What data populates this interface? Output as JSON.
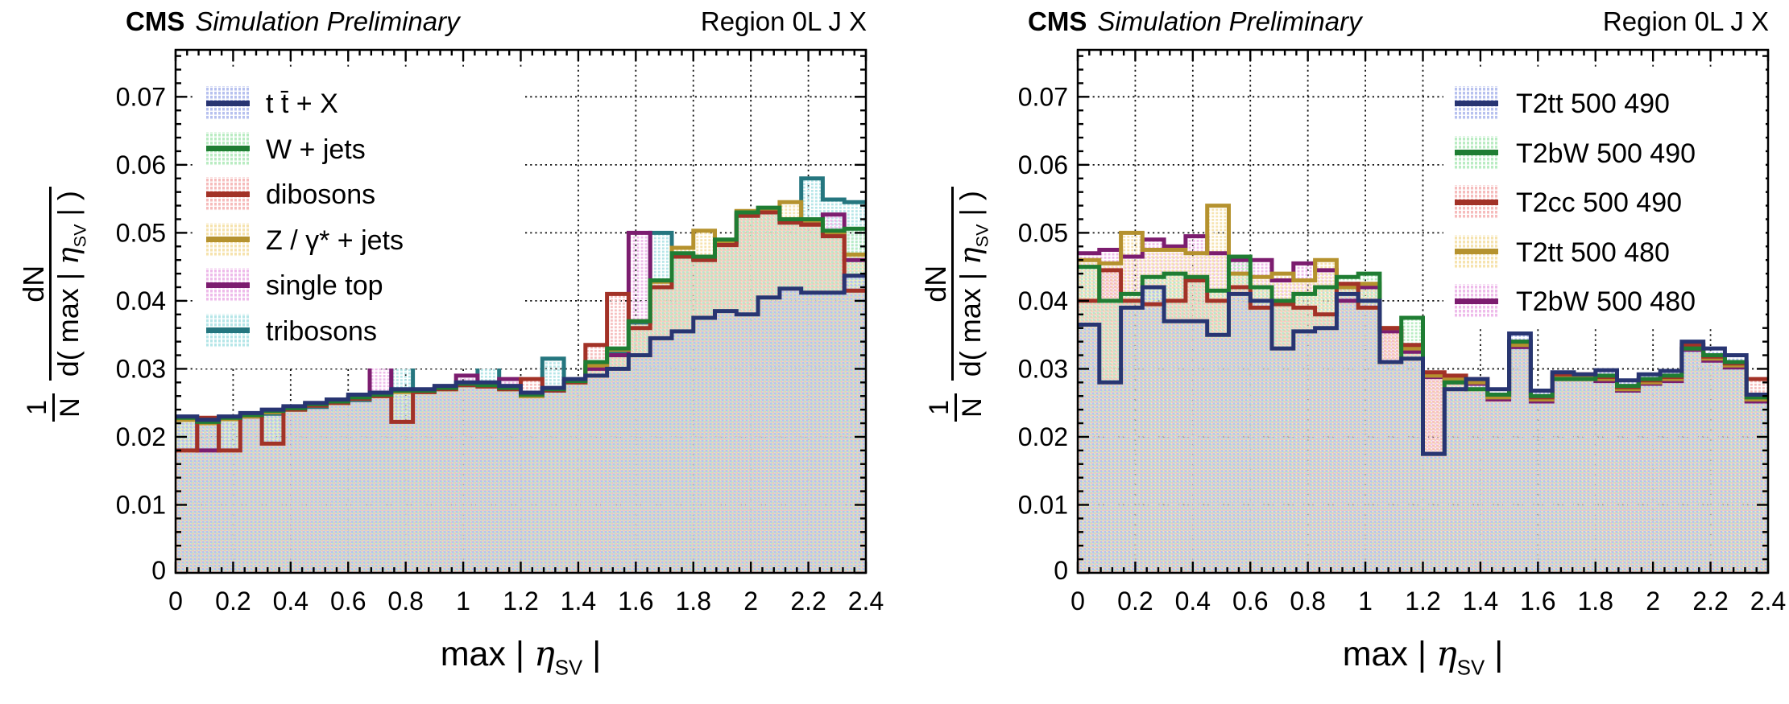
{
  "panels": [
    {
      "header": {
        "cms": "CMS",
        "emphasis": "Simulation Preliminary",
        "region": "Region 0L J X"
      }
    },
    {
      "header": {
        "cms": "CMS",
        "emphasis": "Simulation Preliminary",
        "region": "Region 0L J X"
      }
    }
  ],
  "axes": {
    "x_title": {
      "pre": "max | ",
      "eta": "η",
      "sub": "SV",
      "post": " |"
    },
    "y_title": {
      "one": "1",
      "n": "N",
      "num": "dN",
      "dpre": "d( max | ",
      "eta": "η",
      "sub": "SV",
      "dpost": " | )"
    }
  },
  "chart_data": [
    {
      "type": "histogram-overlay",
      "title": "Region 0L J X",
      "xlabel": "max | eta_SV |",
      "ylabel": "1/N dN/d( max | eta_SV | )",
      "x_range": [
        0,
        2.4
      ],
      "y_range": [
        0,
        0.0769
      ],
      "bin_width": 0.075,
      "n_bins": 32,
      "grid": true,
      "legend_position": "top-left",
      "x_ticks": [
        0,
        0.2,
        0.4,
        0.6,
        0.8,
        1,
        1.2,
        1.4,
        1.6,
        1.8,
        2,
        2.2,
        2.4
      ],
      "x_tick_labels": [
        "0",
        "0.2",
        "0.4",
        "0.6",
        "0.8",
        "1",
        "1.2",
        "1.4",
        "1.6",
        "1.8",
        "2",
        "2.2",
        "2.4"
      ],
      "y_ticks": [
        0,
        0.01,
        0.02,
        0.03,
        0.04,
        0.05,
        0.06,
        0.07
      ],
      "y_tick_labels": [
        "0",
        "0.01",
        "0.02",
        "0.03",
        "0.04",
        "0.05",
        "0.06",
        "0.07"
      ],
      "series": [
        {
          "name": "t t̄ + X",
          "stroke": "#283572",
          "fill": "#b7c1ef",
          "values": [
            0.023,
            0.0225,
            0.023,
            0.0235,
            0.024,
            0.0245,
            0.025,
            0.0255,
            0.0262,
            0.0265,
            0.027,
            0.027,
            0.0275,
            0.028,
            0.028,
            0.0275,
            0.0265,
            0.0272,
            0.0285,
            0.029,
            0.03,
            0.032,
            0.0345,
            0.0355,
            0.0375,
            0.0385,
            0.038,
            0.0405,
            0.0418,
            0.0412,
            0.0412,
            0.0437
          ]
        },
        {
          "name": "W + jets",
          "stroke": "#1f7d33",
          "fill": "#b9ecc2",
          "values": [
            0.0228,
            0.0222,
            0.0228,
            0.0232,
            0.0238,
            0.0242,
            0.0248,
            0.0252,
            0.0258,
            0.0262,
            0.0268,
            0.0268,
            0.0272,
            0.0278,
            0.0276,
            0.0272,
            0.0262,
            0.027,
            0.0282,
            0.031,
            0.033,
            0.037,
            0.043,
            0.047,
            0.0465,
            0.049,
            0.053,
            0.0537,
            0.052,
            0.052,
            0.0503,
            0.0506
          ]
        },
        {
          "name": "dibosons",
          "stroke": "#a23227",
          "fill": "#f6bcbc",
          "values": [
            0.018,
            0.0228,
            0.018,
            0.0232,
            0.019,
            0.024,
            0.0246,
            0.025,
            0.0256,
            0.026,
            0.0222,
            0.0266,
            0.027,
            0.0276,
            0.0274,
            0.027,
            0.0285,
            0.0268,
            0.028,
            0.0335,
            0.041,
            0.036,
            0.042,
            0.0465,
            0.046,
            0.0482,
            0.0525,
            0.053,
            0.0515,
            0.0512,
            0.0495,
            0.0415
          ]
        },
        {
          "name": "Z / γ* + jets",
          "stroke": "#b5922e",
          "fill": "#f6e3ae",
          "values": [
            0.0225,
            0.022,
            0.0226,
            0.023,
            0.0236,
            0.024,
            0.0246,
            0.025,
            0.0256,
            0.026,
            0.0266,
            0.0266,
            0.027,
            0.0276,
            0.0274,
            0.027,
            0.026,
            0.0268,
            0.028,
            0.0305,
            0.0328,
            0.037,
            0.0428,
            0.0478,
            0.0503,
            0.0488,
            0.0532,
            0.0535,
            0.0545,
            0.0518,
            0.05,
            0.0468
          ]
        },
        {
          "name": "single top",
          "stroke": "#7c1d6f",
          "fill": "#eebbea",
          "values": [
            0.0228,
            0.018,
            0.0228,
            0.023,
            0.0236,
            0.0242,
            0.0246,
            0.0252,
            0.0256,
            0.0315,
            0.0268,
            0.0268,
            0.0272,
            0.029,
            0.0278,
            0.0285,
            0.0262,
            0.027,
            0.0282,
            0.03,
            0.032,
            0.05,
            0.043,
            0.0465,
            0.0462,
            0.0486,
            0.0528,
            0.0532,
            0.052,
            0.0515,
            0.0527,
            0.046
          ]
        },
        {
          "name": "tribosons",
          "stroke": "#25767f",
          "fill": "#b6e6e8",
          "values": [
            0.0226,
            0.0222,
            0.0226,
            0.023,
            0.0234,
            0.024,
            0.0244,
            0.025,
            0.0254,
            0.026,
            0.0305,
            0.0266,
            0.027,
            0.0276,
            0.0318,
            0.027,
            0.026,
            0.0315,
            0.028,
            0.0302,
            0.0325,
            0.0368,
            0.05,
            0.0468,
            0.0462,
            0.0487,
            0.0528,
            0.0533,
            0.052,
            0.058,
            0.0549,
            0.0545
          ]
        }
      ]
    },
    {
      "type": "histogram-overlay",
      "title": "Region 0L J X",
      "xlabel": "max | eta_SV |",
      "ylabel": "1/N dN/d( max | eta_SV | )",
      "x_range": [
        0,
        2.4
      ],
      "y_range": [
        0,
        0.0769
      ],
      "bin_width": 0.075,
      "n_bins": 32,
      "grid": true,
      "legend_position": "top-right",
      "x_ticks": [
        0,
        0.2,
        0.4,
        0.6,
        0.8,
        1,
        1.2,
        1.4,
        1.6,
        1.8,
        2,
        2.2,
        2.4
      ],
      "x_tick_labels": [
        "0",
        "0.2",
        "0.4",
        "0.6",
        "0.8",
        "1",
        "1.2",
        "1.4",
        "1.6",
        "1.8",
        "2",
        "2.2",
        "2.4"
      ],
      "y_ticks": [
        0,
        0.01,
        0.02,
        0.03,
        0.04,
        0.05,
        0.06,
        0.07
      ],
      "y_tick_labels": [
        "0",
        "0.01",
        "0.02",
        "0.03",
        "0.04",
        "0.05",
        "0.06",
        "0.07"
      ],
      "series": [
        {
          "name": "T2tt 500 490",
          "stroke": "#283572",
          "fill": "#b7c1ef",
          "values": [
            0.0365,
            0.028,
            0.039,
            0.042,
            0.037,
            0.037,
            0.035,
            0.041,
            0.04,
            0.033,
            0.0355,
            0.036,
            0.041,
            0.04,
            0.031,
            0.0315,
            0.0175,
            0.027,
            0.0285,
            0.027,
            0.0352,
            0.0268,
            0.0295,
            0.0292,
            0.0298,
            0.0283,
            0.0292,
            0.0297,
            0.034,
            0.033,
            0.032,
            0.0262
          ]
        },
        {
          "name": "T2bW 500 490",
          "stroke": "#1f7d33",
          "fill": "#b9ecc2",
          "values": [
            0.045,
            0.04,
            0.041,
            0.0435,
            0.044,
            0.0435,
            0.0415,
            0.0465,
            0.042,
            0.04,
            0.041,
            0.042,
            0.0435,
            0.044,
            0.031,
            0.0375,
            0.0175,
            0.028,
            0.027,
            0.0262,
            0.034,
            0.026,
            0.0285,
            0.0285,
            0.029,
            0.0275,
            0.0285,
            0.029,
            0.033,
            0.032,
            0.031,
            0.0258
          ]
        },
        {
          "name": "T2cc 500 490",
          "stroke": "#a23227",
          "fill": "#f6bcbc",
          "values": [
            0.04,
            0.0445,
            0.04,
            0.0395,
            0.04,
            0.043,
            0.04,
            0.042,
            0.039,
            0.0395,
            0.039,
            0.038,
            0.0425,
            0.039,
            0.036,
            0.0335,
            0.0295,
            0.029,
            0.0285,
            0.0262,
            0.034,
            0.0258,
            0.0292,
            0.0292,
            0.0288,
            0.0273,
            0.0283,
            0.0288,
            0.0335,
            0.0318,
            0.0308,
            0.0285
          ]
        },
        {
          "name": "T2tt 500 480",
          "stroke": "#b5922e",
          "fill": "#f6e3ae",
          "values": [
            0.046,
            0.0455,
            0.05,
            0.0475,
            0.0475,
            0.047,
            0.054,
            0.044,
            0.0435,
            0.044,
            0.043,
            0.046,
            0.042,
            0.0425,
            0.036,
            0.033,
            0.029,
            0.0285,
            0.028,
            0.0258,
            0.0335,
            0.0255,
            0.0288,
            0.0288,
            0.0285,
            0.027,
            0.028,
            0.0285,
            0.033,
            0.0315,
            0.0305,
            0.0255
          ]
        },
        {
          "name": "T2bW 500 480",
          "stroke": "#7c1d6f",
          "fill": "#eebbea",
          "values": [
            0.047,
            0.0475,
            0.0465,
            0.049,
            0.048,
            0.0495,
            0.047,
            0.046,
            0.046,
            0.043,
            0.0455,
            0.0445,
            0.04,
            0.042,
            0.0355,
            0.0325,
            0.0288,
            0.028,
            0.0278,
            0.0255,
            0.0332,
            0.0252,
            0.0285,
            0.0285,
            0.0282,
            0.0268,
            0.0278,
            0.0282,
            0.0328,
            0.0312,
            0.0302,
            0.0252
          ]
        }
      ]
    }
  ]
}
